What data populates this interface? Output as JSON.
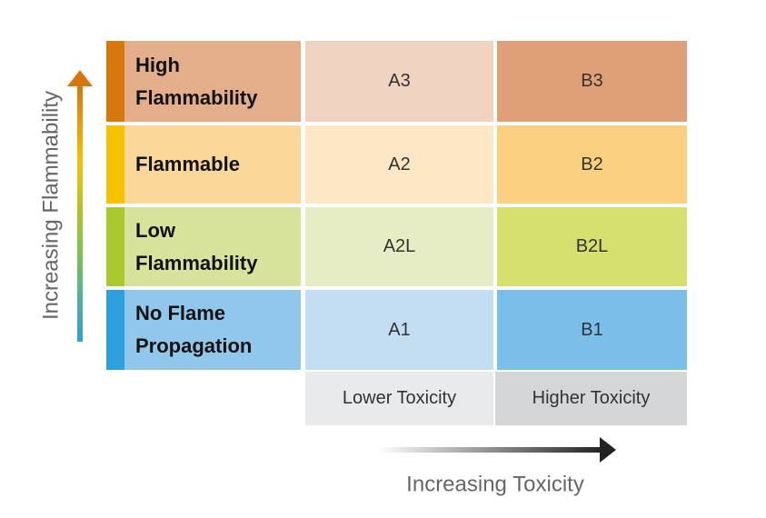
{
  "axis_labels": {
    "vertical": "Increasing Flammability",
    "horizontal": "Increasing Toxicity"
  },
  "rows": [
    {
      "label": "High Flammability",
      "cells": [
        "A3",
        "B3"
      ]
    },
    {
      "label": "Flammable",
      "cells": [
        "A2",
        "B2"
      ]
    },
    {
      "label": "Low Flammability",
      "cells": [
        "A2L",
        "B2L"
      ]
    },
    {
      "label": "No Flame Propagation",
      "cells": [
        "A1",
        "B1"
      ]
    }
  ],
  "columns": [
    "Lower Toxicity",
    "Higher Toxicity"
  ]
}
